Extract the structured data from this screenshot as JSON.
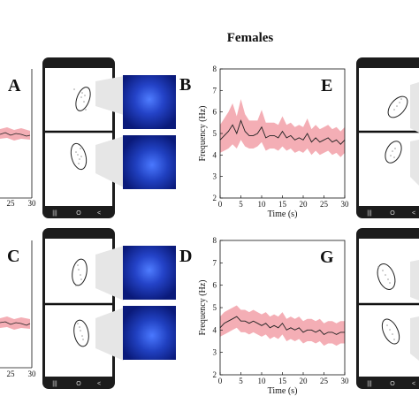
{
  "header": {
    "title": "Females"
  },
  "panel_letters": [
    "A",
    "B",
    "C",
    "D",
    "E",
    "G"
  ],
  "phone_nav": {
    "recents": "|||",
    "home": "O",
    "back": "<"
  },
  "colors": {
    "mean_line": "#222222",
    "band": "#f2a0a8",
    "spectrogram_dark": "#0a1a7a",
    "spectrogram_bright": "#3a6cff",
    "phone_frame": "#1c1c1c"
  },
  "chart_data": [
    {
      "panel": "E",
      "type": "line",
      "xlabel": "Time (s)",
      "ylabel": "Frequency (Hz)",
      "xlim": [
        0,
        30
      ],
      "ylim": [
        2,
        8
      ],
      "xticks": [
        0,
        5,
        10,
        15,
        20,
        25,
        30
      ],
      "yticks": [
        2,
        3,
        4,
        5,
        6,
        7,
        8
      ],
      "grid": false,
      "x": [
        0,
        1,
        2,
        3,
        4,
        5,
        6,
        7,
        8,
        9,
        10,
        11,
        12,
        13,
        14,
        15,
        16,
        17,
        18,
        19,
        20,
        21,
        22,
        23,
        24,
        25,
        26,
        27,
        28,
        29,
        30
      ],
      "mean": [
        4.7,
        4.9,
        5.1,
        5.4,
        5.0,
        5.6,
        5.1,
        4.9,
        4.9,
        5.0,
        5.3,
        4.8,
        4.9,
        4.9,
        4.8,
        5.1,
        4.8,
        4.9,
        4.7,
        4.8,
        4.7,
        5.0,
        4.6,
        4.8,
        4.6,
        4.7,
        4.8,
        4.6,
        4.7,
        4.5,
        4.7
      ],
      "band_upper": [
        5.4,
        5.7,
        6.0,
        6.4,
        5.8,
        6.6,
        5.9,
        5.6,
        5.6,
        5.6,
        6.1,
        5.5,
        5.5,
        5.5,
        5.4,
        5.8,
        5.4,
        5.5,
        5.3,
        5.4,
        5.3,
        5.7,
        5.2,
        5.4,
        5.2,
        5.3,
        5.4,
        5.2,
        5.3,
        5.1,
        5.3
      ],
      "band_lower": [
        4.1,
        4.2,
        4.3,
        4.5,
        4.3,
        4.7,
        4.4,
        4.3,
        4.3,
        4.4,
        4.6,
        4.2,
        4.3,
        4.3,
        4.2,
        4.4,
        4.2,
        4.3,
        4.1,
        4.2,
        4.1,
        4.3,
        4.0,
        4.2,
        4.0,
        4.1,
        4.2,
        4.0,
        4.1,
        3.9,
        4.1
      ]
    },
    {
      "panel": "G",
      "type": "line",
      "xlabel": "Time (s)",
      "ylabel": "Frequency (Hz)",
      "xlim": [
        0,
        30
      ],
      "ylim": [
        2,
        8
      ],
      "xticks": [
        0,
        5,
        10,
        15,
        20,
        25,
        30
      ],
      "yticks": [
        2,
        3,
        4,
        5,
        6,
        7,
        8
      ],
      "grid": false,
      "x": [
        0,
        1,
        2,
        3,
        4,
        5,
        6,
        7,
        8,
        9,
        10,
        11,
        12,
        13,
        14,
        15,
        16,
        17,
        18,
        19,
        20,
        21,
        22,
        23,
        24,
        25,
        26,
        27,
        28,
        29,
        30
      ],
      "mean": [
        4.1,
        4.3,
        4.4,
        4.5,
        4.6,
        4.4,
        4.4,
        4.3,
        4.4,
        4.3,
        4.2,
        4.3,
        4.1,
        4.2,
        4.1,
        4.3,
        4.0,
        4.1,
        4.0,
        4.1,
        3.9,
        4.0,
        4.0,
        3.9,
        4.0,
        3.8,
        3.9,
        3.9,
        3.8,
        3.9,
        3.9
      ],
      "band_upper": [
        4.6,
        4.8,
        4.9,
        5.0,
        5.1,
        4.9,
        4.9,
        4.8,
        4.9,
        4.8,
        4.7,
        4.8,
        4.6,
        4.7,
        4.6,
        4.8,
        4.5,
        4.6,
        4.5,
        4.6,
        4.4,
        4.5,
        4.5,
        4.4,
        4.5,
        4.3,
        4.4,
        4.4,
        4.3,
        4.4,
        4.4
      ],
      "band_lower": [
        3.7,
        3.8,
        3.9,
        4.0,
        4.1,
        3.9,
        3.9,
        3.8,
        3.9,
        3.8,
        3.7,
        3.8,
        3.6,
        3.7,
        3.6,
        3.8,
        3.5,
        3.6,
        3.5,
        3.6,
        3.4,
        3.5,
        3.5,
        3.4,
        3.5,
        3.3,
        3.4,
        3.4,
        3.3,
        3.4,
        3.4
      ]
    }
  ],
  "partial_axes": {
    "top": {
      "xticks": [
        25,
        30
      ]
    },
    "bottom": {
      "xticks": [
        25,
        30
      ]
    }
  }
}
